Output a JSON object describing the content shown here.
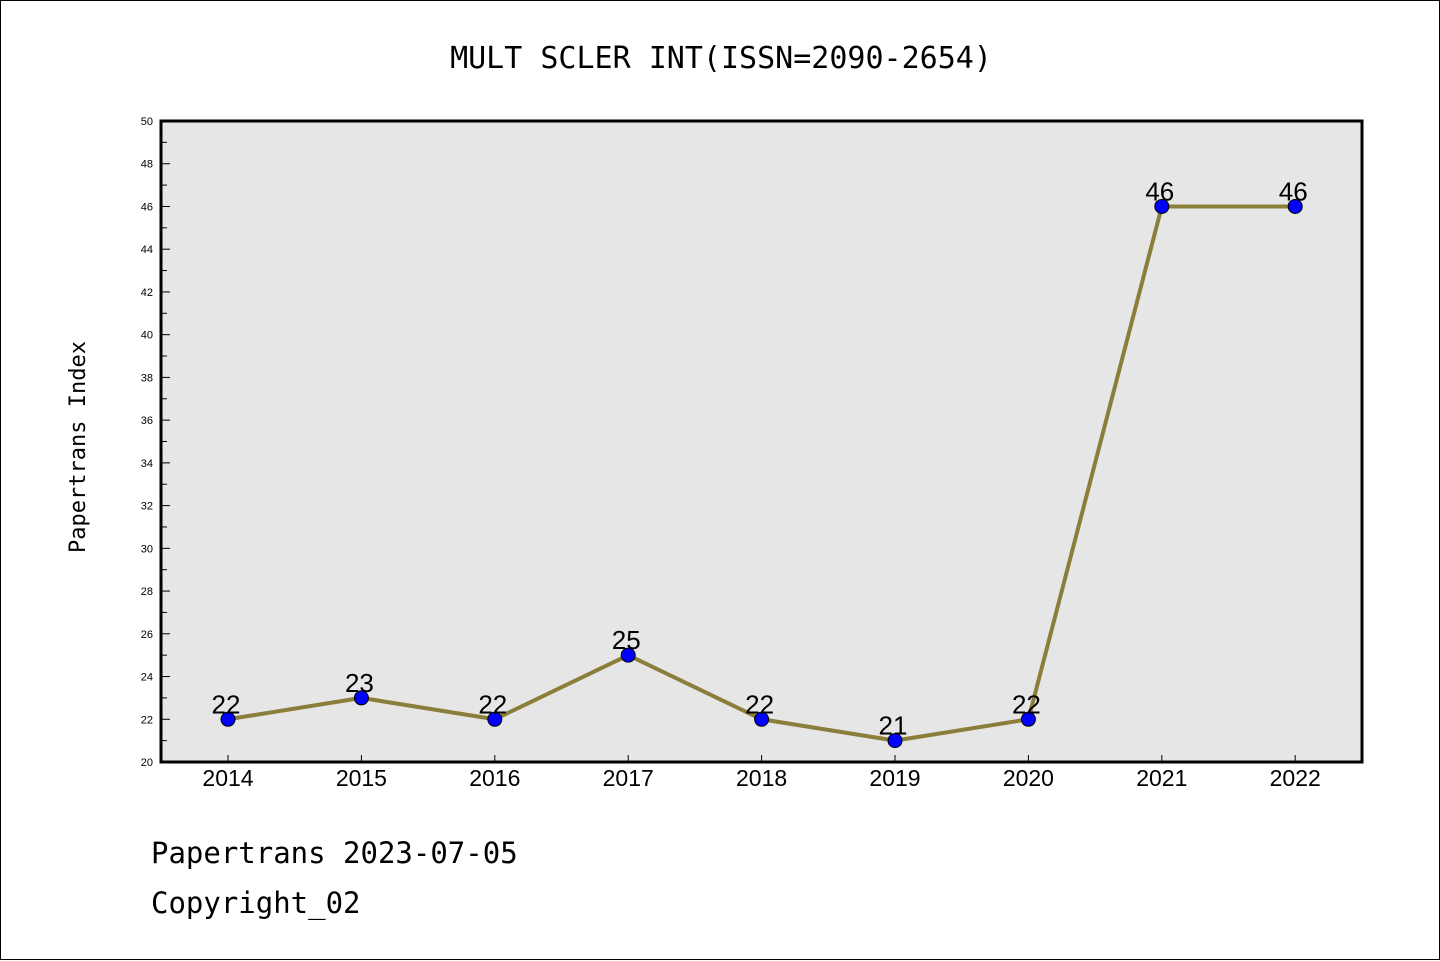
{
  "chart_data": {
    "type": "line",
    "title": "MULT SCLER INT(ISSN=2090-2654)",
    "xlabel": "",
    "ylabel": "Papertrans Index",
    "categories": [
      "2014",
      "2015",
      "2016",
      "2017",
      "2018",
      "2019",
      "2020",
      "2021",
      "2022"
    ],
    "series": [
      {
        "values": [
          22,
          23,
          22,
          25,
          22,
          21,
          22,
          46,
          46
        ]
      }
    ],
    "data_labels": [
      "22",
      "23",
      "22",
      "25",
      "22",
      "21",
      "22",
      "46",
      "46"
    ],
    "ylim": [
      20,
      50
    ],
    "yticks": [
      "20",
      "22",
      "24",
      "26",
      "28",
      "30",
      "32",
      "34",
      "36",
      "38",
      "40",
      "42",
      "44",
      "46",
      "48",
      "50"
    ],
    "grid": false,
    "legend": "none",
    "colors": {
      "line": "#8B7D3A",
      "marker": "#0000FF",
      "plot_background": "#E6E6E6"
    }
  },
  "footer": {
    "date_text": "Papertrans 2023-07-05",
    "copyright_text": "Copyright_02"
  }
}
